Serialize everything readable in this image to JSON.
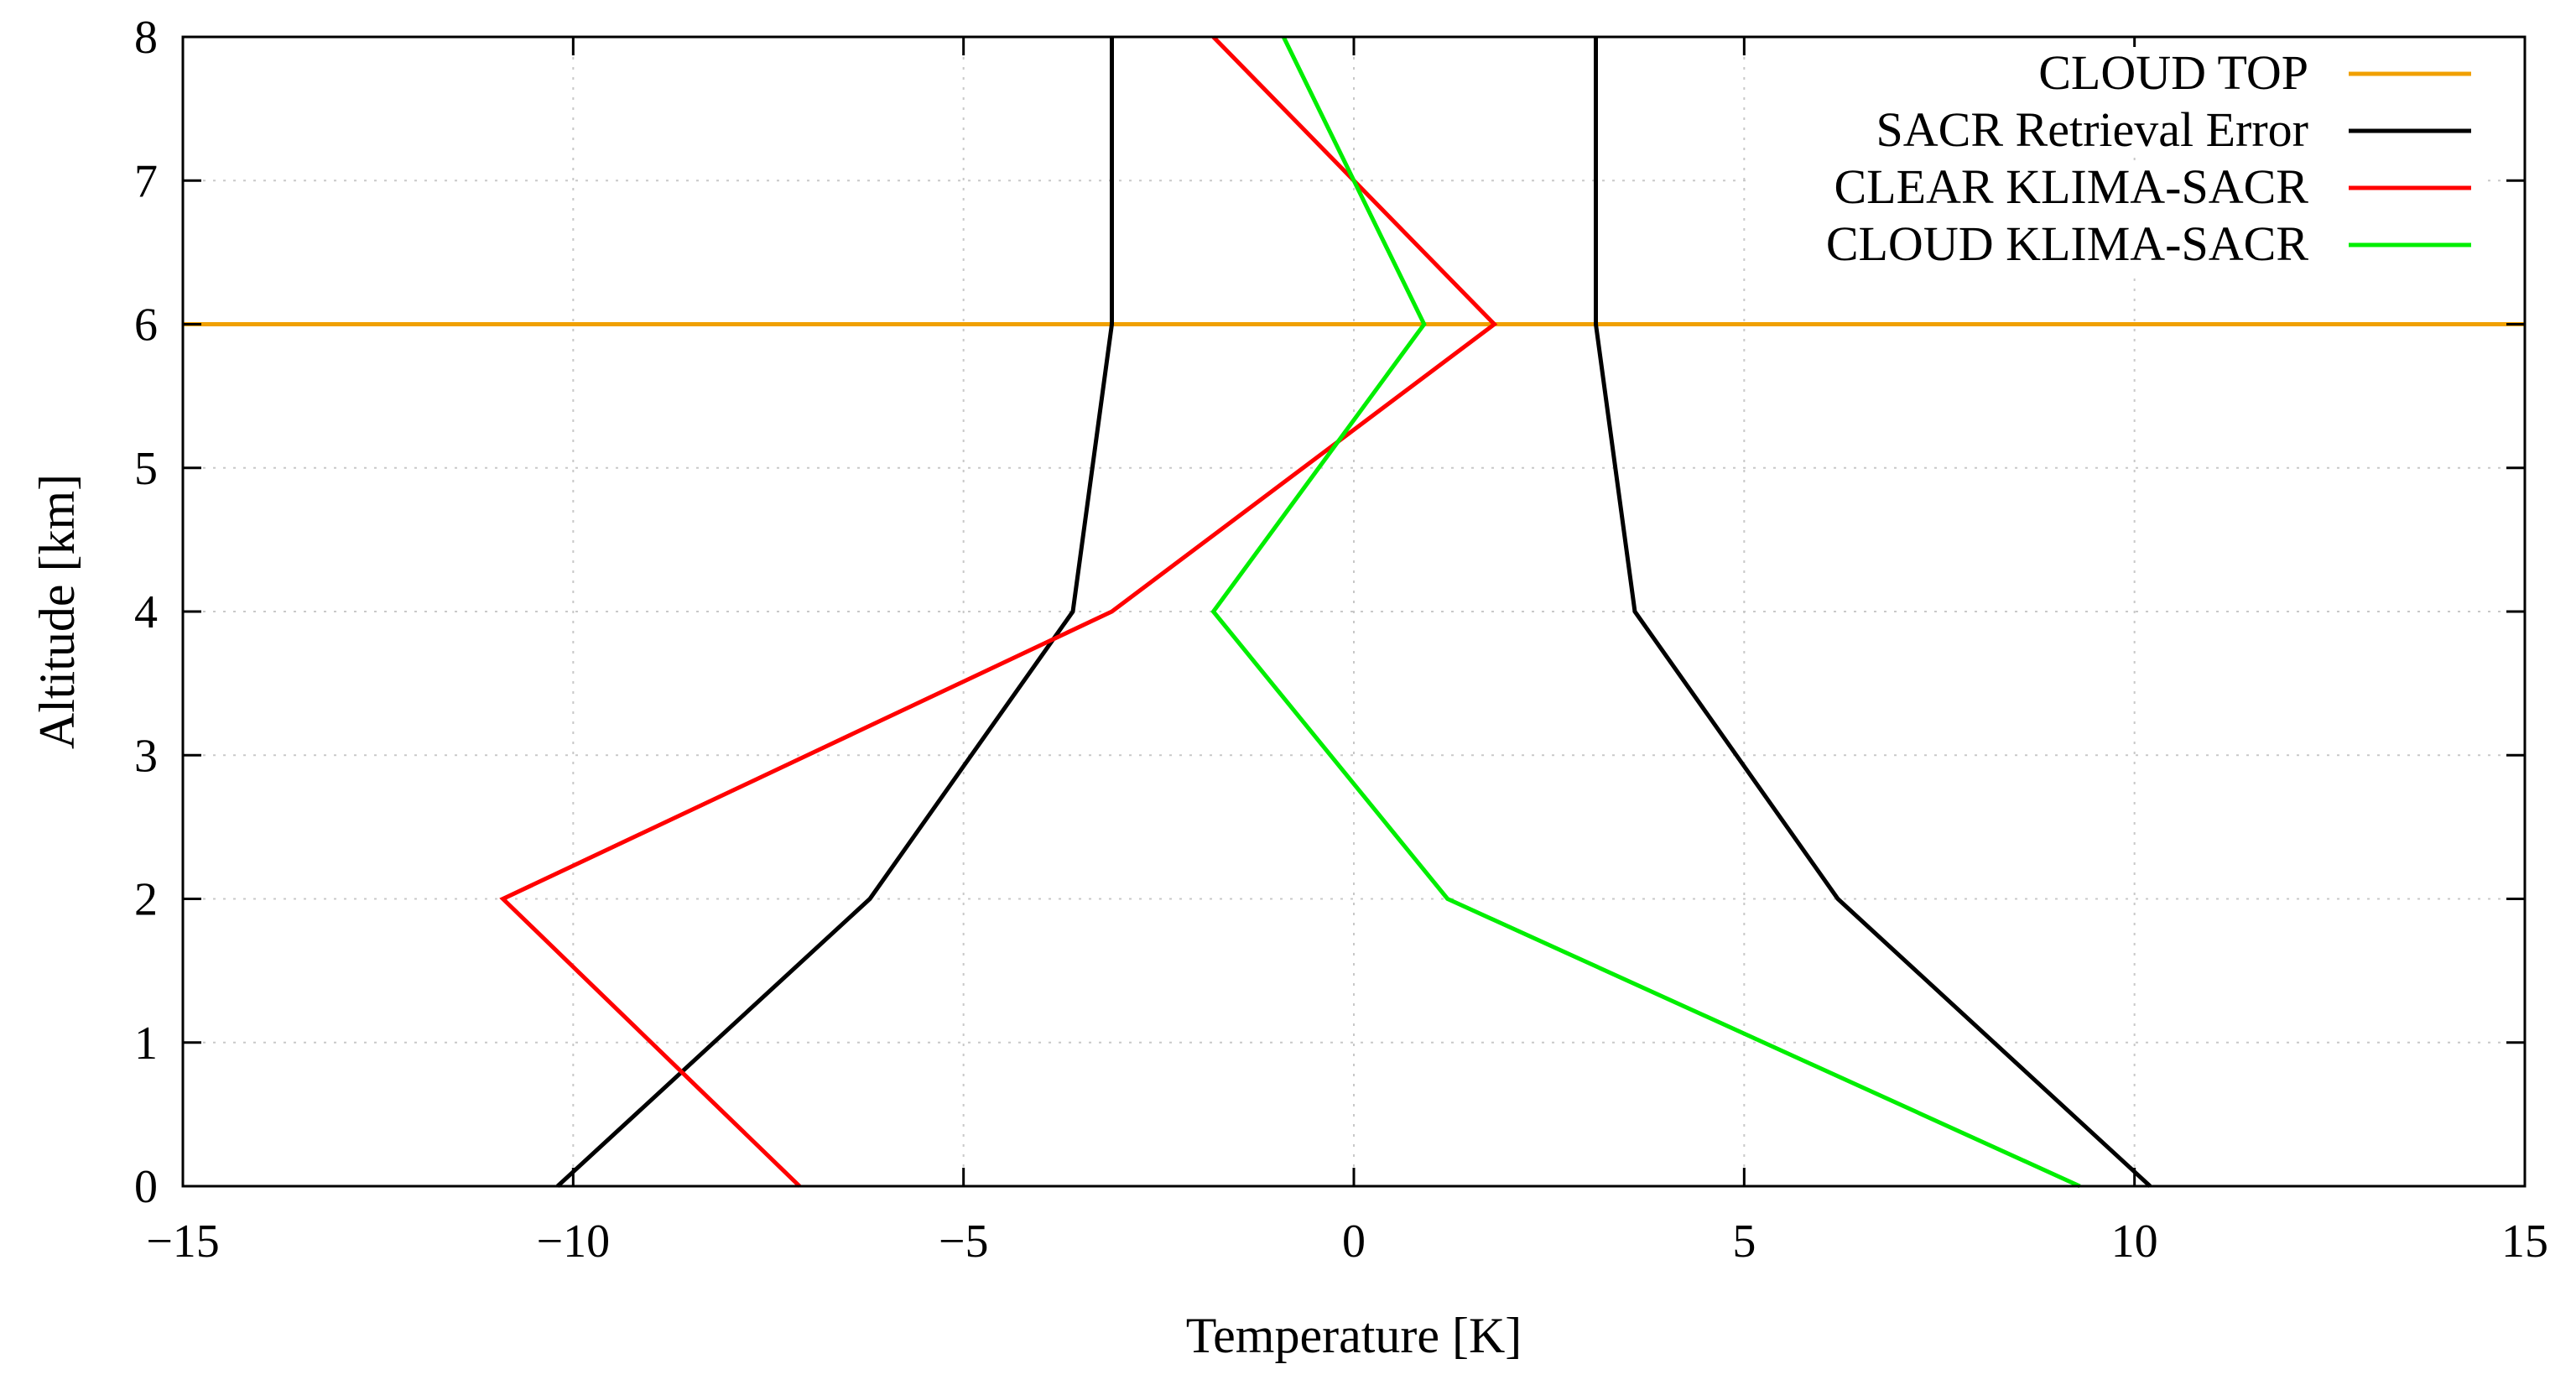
{
  "chart_data": {
    "type": "line",
    "title": "",
    "xlabel": "Temperature [K]",
    "ylabel": "Altitude [km]",
    "xlim": [
      -15,
      15
    ],
    "ylim": [
      0,
      8
    ],
    "xticks": [
      -15,
      -10,
      -5,
      0,
      5,
      10,
      15
    ],
    "yticks": [
      0,
      1,
      2,
      3,
      4,
      5,
      6,
      7,
      8
    ],
    "xtick_labels": [
      "−15",
      "−10",
      "−5",
      "0",
      "5",
      "10",
      "15"
    ],
    "ytick_labels": [
      "0",
      "1",
      "2",
      "3",
      "4",
      "5",
      "6",
      "7",
      "8"
    ],
    "grid": true,
    "legend_position": "top-right",
    "series": [
      {
        "name": "CLOUD TOP",
        "color": "#f0a000",
        "kind": "hline",
        "y": 6
      },
      {
        "name": "SACR Retrieval Error",
        "color": "#000000",
        "kind": "symmetric",
        "points": [
          [
            10.2,
            0
          ],
          [
            6.2,
            2
          ],
          [
            3.6,
            4
          ],
          [
            3.1,
            6
          ],
          [
            3.1,
            8
          ]
        ]
      },
      {
        "name": "CLEAR KLIMA-SACR",
        "color": "#ff0000",
        "kind": "line",
        "points": [
          [
            -7.1,
            0
          ],
          [
            -10.9,
            2
          ],
          [
            -3.1,
            4
          ],
          [
            1.8,
            6
          ],
          [
            -1.8,
            8
          ]
        ]
      },
      {
        "name": "CLOUD KLIMA-SACR",
        "color": "#00ee00",
        "kind": "line",
        "points": [
          [
            9.3,
            0
          ],
          [
            1.2,
            2
          ],
          [
            -1.8,
            4
          ],
          [
            0.9,
            6
          ],
          [
            -0.9,
            8
          ]
        ]
      }
    ]
  }
}
